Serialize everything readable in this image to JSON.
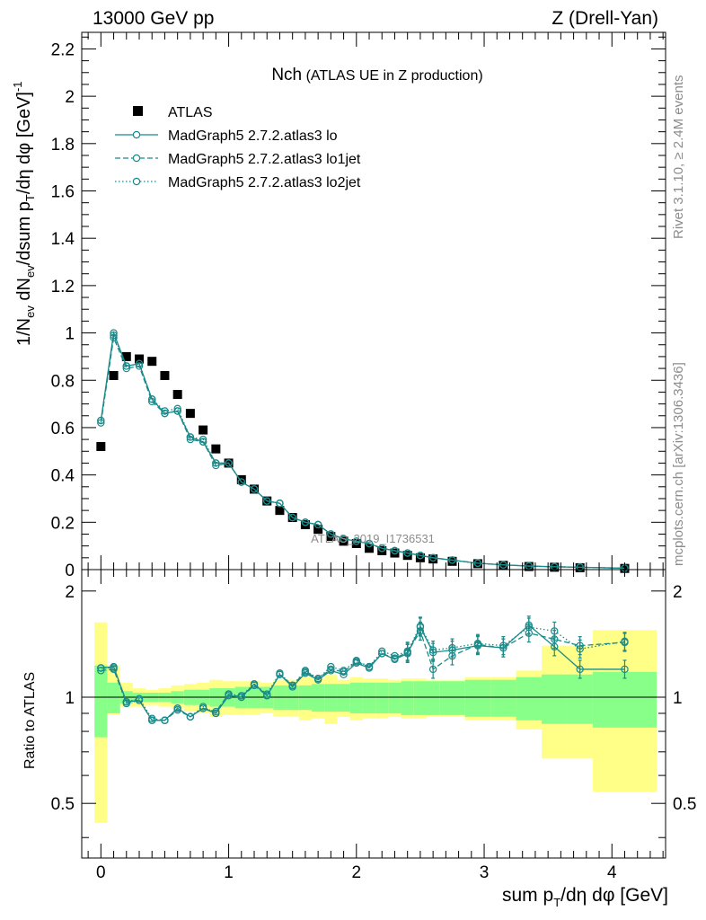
{
  "header": {
    "left": "13000 GeV pp",
    "right": "Z (Drell-Yan)"
  },
  "side_text": {
    "rivet": "Rivet 3.1.10, ≥ 2.4M events",
    "mcplots": "mcplots.cern.ch [arXiv:1306.3436]"
  },
  "colors": {
    "data": "#000000",
    "mc": "#1a8a8a",
    "band_outer": "#ffff88",
    "band_inner": "#88ff88"
  },
  "chart_data": [
    {
      "type": "scatter",
      "title_main": "Nch",
      "title_sub": "(ATLAS UE in Z production)",
      "watermark": "ATLAS_2019_I1736531",
      "ylabel": "1/N_ev dN_ev/dsum p_T/dη dφ [GeV]^-1",
      "xlim": [
        -0.15,
        4.42
      ],
      "ylim": [
        0,
        2.27
      ],
      "x_ticks": [
        0,
        1,
        2,
        3,
        4
      ],
      "y_ticks": [
        0,
        0.2,
        0.4,
        0.6,
        0.8,
        1,
        1.2,
        1.4,
        1.6,
        1.8,
        2,
        2.2
      ],
      "y_tick_labels": [
        "0",
        "0.2",
        "0.4",
        "0.6",
        "0.8",
        "1",
        "1.2",
        "1.4",
        "1.6",
        "1.8",
        "2",
        "2.2"
      ],
      "legend": [
        "ATLAS",
        "MadGraph5 2.7.2.atlas3 lo",
        "MadGraph5 2.7.2.atlas3 lo1jet",
        "MadGraph5 2.7.2.atlas3 lo2jet"
      ],
      "x": [
        0,
        0.1,
        0.2,
        0.3,
        0.4,
        0.5,
        0.6,
        0.7,
        0.8,
        0.9,
        1.0,
        1.1,
        1.2,
        1.3,
        1.4,
        1.5,
        1.6,
        1.7,
        1.8,
        1.9,
        2.0,
        2.1,
        2.2,
        2.3,
        2.4,
        2.5,
        2.6,
        2.75,
        2.95,
        3.15,
        3.35,
        3.55,
        3.75,
        4.1
      ],
      "series": [
        {
          "name": "ATLAS",
          "style": "data",
          "values": [
            0.52,
            0.82,
            0.9,
            0.89,
            0.88,
            0.82,
            0.74,
            0.66,
            0.59,
            0.51,
            0.45,
            0.38,
            0.34,
            0.29,
            0.25,
            0.22,
            0.19,
            0.17,
            0.14,
            0.12,
            0.11,
            0.09,
            0.08,
            0.07,
            0.06,
            0.05,
            0.045,
            0.035,
            0.025,
            0.018,
            0.013,
            0.01,
            0.008,
            0.005
          ]
        },
        {
          "name": "MadGraph5 2.7.2.atlas3 lo",
          "style": "solid",
          "values": [
            0.63,
            1.0,
            0.86,
            0.87,
            0.72,
            0.66,
            0.67,
            0.56,
            0.54,
            0.45,
            0.45,
            0.37,
            0.34,
            0.29,
            0.28,
            0.22,
            0.2,
            0.19,
            0.15,
            0.13,
            0.12,
            0.11,
            0.09,
            0.08,
            0.07,
            0.06,
            0.05,
            0.04,
            0.027,
            0.02,
            0.015,
            0.012,
            0.01,
            0.006
          ]
        },
        {
          "name": "MadGraph5 2.7.2.atlas3 lo1jet",
          "style": "dashed",
          "values": [
            0.62,
            0.98,
            0.85,
            0.86,
            0.71,
            0.66,
            0.67,
            0.55,
            0.54,
            0.44,
            0.45,
            0.37,
            0.34,
            0.29,
            0.28,
            0.22,
            0.2,
            0.19,
            0.15,
            0.13,
            0.12,
            0.11,
            0.09,
            0.08,
            0.07,
            0.06,
            0.05,
            0.04,
            0.027,
            0.02,
            0.015,
            0.012,
            0.01,
            0.006
          ]
        },
        {
          "name": "MadGraph5 2.7.2.atlas3 lo2jet",
          "style": "dotted",
          "values": [
            0.63,
            0.99,
            0.86,
            0.87,
            0.72,
            0.67,
            0.68,
            0.56,
            0.55,
            0.45,
            0.45,
            0.37,
            0.34,
            0.29,
            0.28,
            0.22,
            0.2,
            0.19,
            0.15,
            0.13,
            0.12,
            0.11,
            0.09,
            0.08,
            0.07,
            0.06,
            0.05,
            0.04,
            0.027,
            0.02,
            0.015,
            0.012,
            0.01,
            0.006
          ]
        }
      ]
    },
    {
      "type": "line",
      "ylabel": "Ratio to ATLAS",
      "xlabel": "sum p_T/dη dφ [GeV]",
      "xlim": [
        -0.15,
        4.42
      ],
      "ylim": [
        0.35,
        2.3
      ],
      "x_ticks": [
        0,
        1,
        2,
        3,
        4
      ],
      "y_ticks": [
        0.5,
        1,
        2
      ],
      "y_tick_labels": [
        "0.5",
        "1",
        "2"
      ],
      "bins": [
        [
          -0.05,
          0.05
        ],
        [
          0.05,
          0.15
        ],
        [
          0.15,
          0.25
        ],
        [
          0.25,
          0.35
        ],
        [
          0.35,
          0.45
        ],
        [
          0.45,
          0.55
        ],
        [
          0.55,
          0.65
        ],
        [
          0.65,
          0.75
        ],
        [
          0.75,
          0.85
        ],
        [
          0.85,
          0.95
        ],
        [
          0.95,
          1.05
        ],
        [
          1.05,
          1.15
        ],
        [
          1.15,
          1.25
        ],
        [
          1.25,
          1.35
        ],
        [
          1.35,
          1.45
        ],
        [
          1.45,
          1.55
        ],
        [
          1.55,
          1.65
        ],
        [
          1.65,
          1.75
        ],
        [
          1.75,
          1.85
        ],
        [
          1.85,
          1.95
        ],
        [
          1.95,
          2.05
        ],
        [
          2.05,
          2.15
        ],
        [
          2.15,
          2.25
        ],
        [
          2.25,
          2.35
        ],
        [
          2.35,
          2.45
        ],
        [
          2.45,
          2.55
        ],
        [
          2.55,
          2.65
        ],
        [
          2.65,
          2.85
        ],
        [
          2.85,
          3.05
        ],
        [
          3.05,
          3.25
        ],
        [
          3.25,
          3.45
        ],
        [
          3.45,
          3.65
        ],
        [
          3.65,
          3.85
        ],
        [
          3.85,
          4.35
        ]
      ],
      "band_outer": [
        [
          0.44,
          1.63
        ],
        [
          0.89,
          1.23
        ],
        [
          0.94,
          1.1
        ],
        [
          0.94,
          1.06
        ],
        [
          0.95,
          1.05
        ],
        [
          0.94,
          1.06
        ],
        [
          0.93,
          1.08
        ],
        [
          0.91,
          1.09
        ],
        [
          0.9,
          1.1
        ],
        [
          0.88,
          1.12
        ],
        [
          0.89,
          1.11
        ],
        [
          0.89,
          1.11
        ],
        [
          0.89,
          1.11
        ],
        [
          0.9,
          1.1
        ],
        [
          0.88,
          1.12
        ],
        [
          0.88,
          1.12
        ],
        [
          0.86,
          1.14
        ],
        [
          0.87,
          1.13
        ],
        [
          0.84,
          1.16
        ],
        [
          0.88,
          1.12
        ],
        [
          0.86,
          1.14
        ],
        [
          0.87,
          1.13
        ],
        [
          0.87,
          1.13
        ],
        [
          0.88,
          1.12
        ],
        [
          0.87,
          1.13
        ],
        [
          0.87,
          1.13
        ],
        [
          0.88,
          1.12
        ],
        [
          0.88,
          1.12
        ],
        [
          0.86,
          1.14
        ],
        [
          0.86,
          1.14
        ],
        [
          0.81,
          1.19
        ],
        [
          0.67,
          1.4
        ],
        [
          0.67,
          1.4
        ],
        [
          0.54,
          1.55
        ]
      ],
      "band_inner": [
        [
          0.77,
          1.23
        ],
        [
          0.9,
          1.1
        ],
        [
          0.96,
          1.04
        ],
        [
          0.97,
          1.03
        ],
        [
          0.97,
          1.03
        ],
        [
          0.97,
          1.03
        ],
        [
          0.96,
          1.04
        ],
        [
          0.95,
          1.05
        ],
        [
          0.95,
          1.05
        ],
        [
          0.94,
          1.06
        ],
        [
          0.94,
          1.06
        ],
        [
          0.93,
          1.07
        ],
        [
          0.93,
          1.07
        ],
        [
          0.93,
          1.07
        ],
        [
          0.92,
          1.08
        ],
        [
          0.92,
          1.08
        ],
        [
          0.92,
          1.08
        ],
        [
          0.91,
          1.09
        ],
        [
          0.91,
          1.09
        ],
        [
          0.91,
          1.09
        ],
        [
          0.9,
          1.1
        ],
        [
          0.9,
          1.1
        ],
        [
          0.9,
          1.1
        ],
        [
          0.9,
          1.1
        ],
        [
          0.89,
          1.11
        ],
        [
          0.89,
          1.11
        ],
        [
          0.89,
          1.11
        ],
        [
          0.89,
          1.11
        ],
        [
          0.88,
          1.12
        ],
        [
          0.88,
          1.12
        ],
        [
          0.86,
          1.14
        ],
        [
          0.84,
          1.16
        ],
        [
          0.84,
          1.16
        ],
        [
          0.82,
          1.18
        ]
      ],
      "x": [
        0,
        0.1,
        0.2,
        0.3,
        0.4,
        0.5,
        0.6,
        0.7,
        0.8,
        0.9,
        1.0,
        1.1,
        1.2,
        1.3,
        1.4,
        1.5,
        1.6,
        1.7,
        1.8,
        1.9,
        2.0,
        2.1,
        2.2,
        2.3,
        2.4,
        2.5,
        2.6,
        2.75,
        2.95,
        3.15,
        3.35,
        3.55,
        3.75,
        4.1
      ],
      "series": [
        {
          "name": "MadGraph5 2.7.2.atlas3 lo",
          "style": "solid",
          "values": [
            1.21,
            1.22,
            0.97,
            0.98,
            0.86,
            0.86,
            0.93,
            0.88,
            0.93,
            0.9,
            1.01,
            1.0,
            1.09,
            1.01,
            1.16,
            1.07,
            1.17,
            1.12,
            1.19,
            1.16,
            1.25,
            1.21,
            1.33,
            1.28,
            1.33,
            1.58,
            1.34,
            1.36,
            1.4,
            1.38,
            1.6,
            1.39,
            1.2,
            1.2
          ]
        },
        {
          "name": "MadGraph5 2.7.2.atlas3 lo1jet",
          "style": "dashed",
          "values": [
            1.19,
            1.2,
            0.96,
            0.98,
            0.86,
            0.86,
            0.92,
            0.88,
            0.93,
            0.91,
            1.02,
            1.0,
            1.08,
            1.01,
            1.16,
            1.08,
            1.18,
            1.13,
            1.2,
            1.18,
            1.26,
            1.22,
            1.33,
            1.29,
            1.34,
            1.54,
            1.2,
            1.31,
            1.41,
            1.38,
            1.52,
            1.46,
            1.4,
            1.43
          ]
        },
        {
          "name": "MadGraph5 2.7.2.atlas3 lo2jet",
          "style": "dotted",
          "values": [
            1.21,
            1.21,
            0.97,
            0.99,
            0.87,
            0.86,
            0.93,
            0.88,
            0.94,
            0.9,
            1.02,
            1.01,
            1.09,
            1.02,
            1.17,
            1.08,
            1.19,
            1.13,
            1.22,
            1.19,
            1.27,
            1.22,
            1.35,
            1.31,
            1.35,
            1.59,
            1.36,
            1.38,
            1.42,
            1.4,
            1.58,
            1.54,
            1.37,
            1.44
          ]
        }
      ]
    }
  ]
}
